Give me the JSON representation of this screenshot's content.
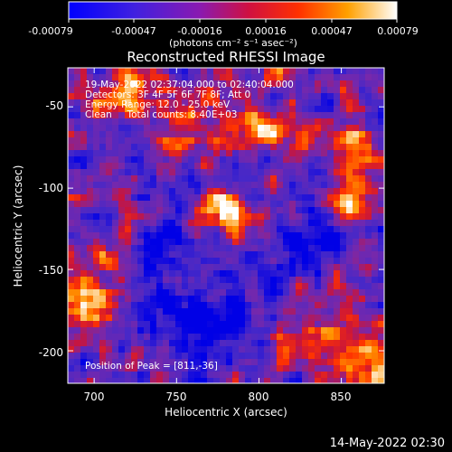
{
  "colorbar": {
    "tick_labels": [
      "-0.00079",
      "-0.00047",
      "-0.00016",
      "0.00016",
      "0.00047",
      "0.00079"
    ],
    "unit_label": "(photons cm⁻² s⁻¹ asec⁻²)",
    "colors": [
      "#0000ff",
      "#6a1fd0",
      "#a000a0",
      "#ff2000",
      "#ff9000",
      "#ffffff"
    ]
  },
  "plot": {
    "title": "Reconstructed RHESSI Image",
    "xlabel": "Heliocentric X (arcsec)",
    "ylabel": "Heliocentric Y (arcsec)",
    "x_ticks": [
      700,
      750,
      800,
      850
    ],
    "y_ticks": [
      -50,
      -100,
      -150,
      -200
    ],
    "xlim": [
      684,
      876
    ],
    "ylim": [
      -220,
      -26
    ]
  },
  "annotations": {
    "line1": "19-May-2022 02:37:04.000 to 02:40:04.000",
    "line2": "Detectors: 3F 4F 5F 6F 7F 8F; Att 0",
    "line3": "Energy Range: 12.0 - 25.0 keV",
    "line4": "Clean     Total counts: 8.40E+03",
    "peak": "Position of Peak = [811,-36]"
  },
  "footer": {
    "timestamp": "14-May-2022 02:30"
  }
}
